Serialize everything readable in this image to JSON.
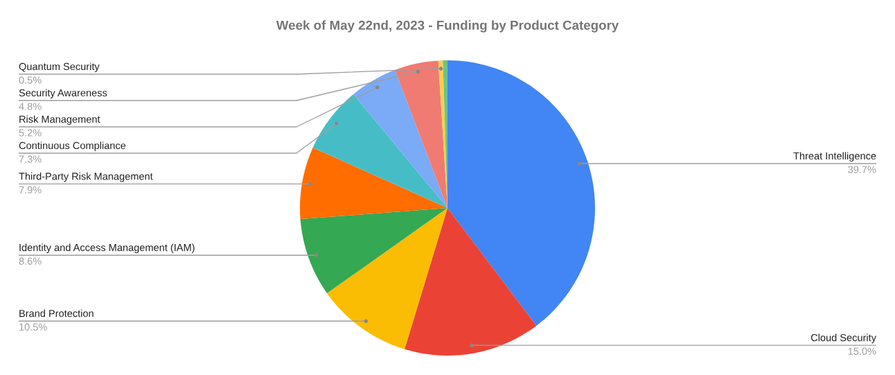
{
  "chart_data": {
    "type": "pie",
    "title": "Week of May 22nd, 2023 - Funding by Product Category",
    "categories": [
      "Threat Intelligence",
      "Cloud Security",
      "Brand Protection",
      "Identity and Access Management (IAM)",
      "Third-Party Risk Management",
      "Continuous Compliance",
      "Risk Management",
      "Security Awareness",
      "Quantum Security",
      null
    ],
    "values": [
      39.7,
      15.0,
      10.5,
      8.6,
      7.9,
      7.3,
      5.2,
      4.8,
      0.5,
      0.5
    ],
    "value_labels": [
      "39.7%",
      "15.0%",
      "10.5%",
      "8.6%",
      "7.9%",
      "7.3%",
      "5.2%",
      "4.8%",
      "0.5%",
      null
    ],
    "colors": [
      "#4285f4",
      "#ea4335",
      "#fbbc04",
      "#34a853",
      "#ff6d01",
      "#46bdc6",
      "#7baaf7",
      "#f07b72",
      "#fcd04f",
      "#71c287"
    ]
  }
}
